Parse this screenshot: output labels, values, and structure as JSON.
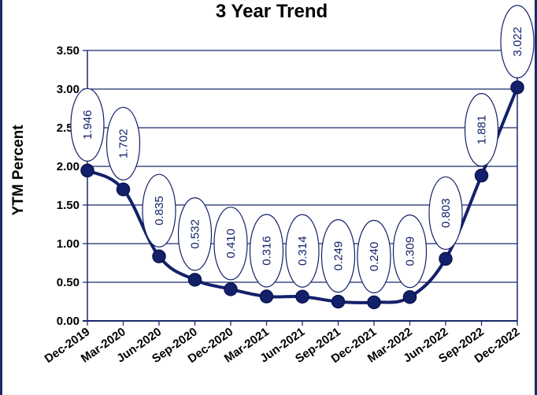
{
  "chart_data": {
    "type": "line",
    "title": "3 Year Trend",
    "xlabel": "",
    "ylabel": "YTM Percent",
    "categories": [
      "Dec-2019",
      "Mar-2020",
      "Jun-2020",
      "Sep-2020",
      "Dec-2020",
      "Mar-2021",
      "Jun-2021",
      "Sep-2021",
      "Dec-2021",
      "Mar-2022",
      "Jun-2022",
      "Sep-2022",
      "Dec-2022"
    ],
    "series": [
      {
        "values": [
          1.946,
          1.702,
          0.835,
          0.532,
          0.41,
          0.316,
          0.314,
          0.249,
          0.24,
          0.309,
          0.803,
          1.881,
          3.022
        ],
        "labels": [
          "1.946",
          "1.702",
          "0.835",
          "0.532",
          "0.410",
          "0.316",
          "0.314",
          "0.249",
          "0.240",
          "0.309",
          "0.803",
          "1.881",
          "3.022"
        ]
      }
    ],
    "ylim": [
      0,
      3.5
    ],
    "yticks": [
      "0.00",
      "0.50",
      "1.00",
      "1.50",
      "2.00",
      "2.50",
      "3.00",
      "3.50"
    ],
    "grid": true,
    "legend": "none",
    "colors": {
      "line": "#13216a",
      "marker": "#13216a",
      "grid": "#1b2a6b",
      "frame": "#1b2a6b"
    }
  }
}
